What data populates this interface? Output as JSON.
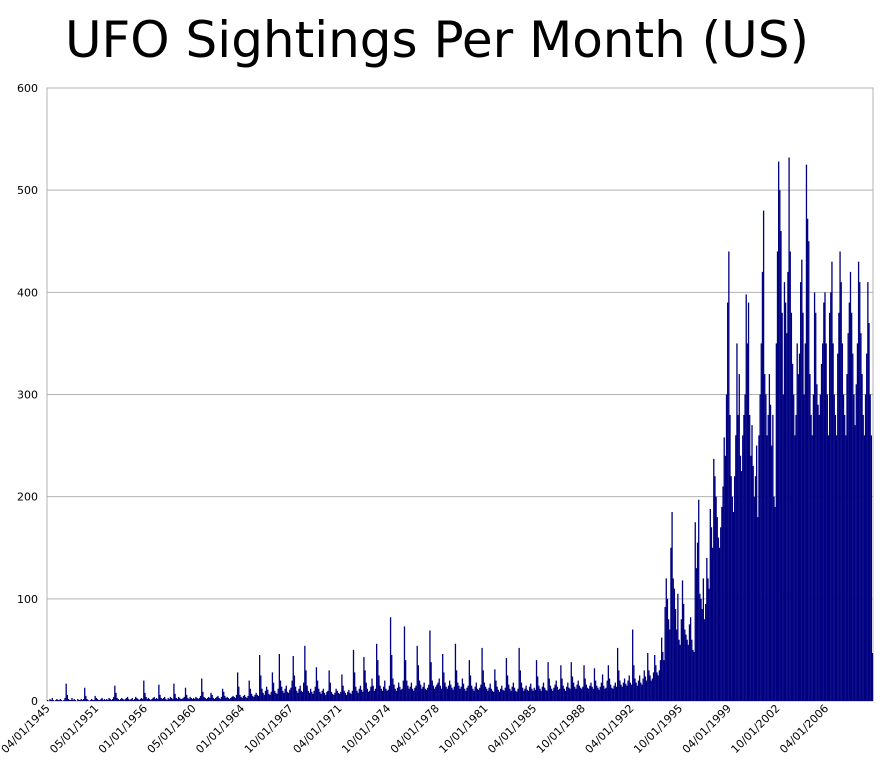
{
  "chart_data": {
    "type": "bar",
    "title": "UFO Sightings Per Month (US)",
    "color": "#000080",
    "grid": true,
    "ylim": [
      0,
      600
    ],
    "yticks": [
      0,
      100,
      200,
      300,
      400,
      500,
      600
    ],
    "categories": [
      "04/01/1945",
      null,
      null,
      null,
      null,
      null,
      null,
      null,
      null,
      null,
      null,
      null,
      null,
      null,
      null,
      null,
      null,
      null,
      null,
      null,
      null,
      null,
      null,
      null,
      null,
      null,
      null,
      null,
      null,
      null,
      null,
      null,
      null,
      null,
      null,
      null,
      null,
      null,
      null,
      null,
      null,
      null,
      "05/01/1951",
      null,
      null,
      null,
      null,
      null,
      null,
      null,
      null,
      null,
      null,
      null,
      null,
      null,
      null,
      null,
      null,
      null,
      null,
      null,
      null,
      null,
      null,
      null,
      null,
      null,
      null,
      null,
      null,
      null,
      null,
      null,
      null,
      null,
      null,
      null,
      null,
      null,
      null,
      null,
      null,
      null,
      "01/01/1956",
      null,
      null,
      null,
      null,
      null,
      null,
      null,
      null,
      null,
      null,
      null,
      null,
      null,
      null,
      null,
      null,
      null,
      null,
      null,
      null,
      null,
      null,
      null,
      null,
      null,
      null,
      null,
      null,
      null,
      null,
      null,
      null,
      null,
      null,
      null,
      null,
      null,
      null,
      null,
      null,
      null,
      "05/01/1960",
      null,
      null,
      null,
      null,
      null,
      null,
      null,
      null,
      null,
      null,
      null,
      null,
      null,
      null,
      null,
      null,
      null,
      null,
      null,
      null,
      null,
      null,
      null,
      null,
      null,
      null,
      null,
      null,
      null,
      null,
      null,
      null,
      null,
      null,
      null,
      null,
      null,
      null,
      null,
      null,
      null,
      "01/01/1964",
      null,
      null,
      null,
      null,
      null,
      null,
      null,
      null,
      null,
      null,
      null,
      null,
      null,
      null,
      null,
      null,
      null,
      null,
      null,
      null,
      null,
      null,
      null,
      null,
      null,
      null,
      null,
      null,
      null,
      null,
      null,
      null,
      null,
      null,
      null,
      null,
      null,
      null,
      null,
      null,
      null,
      "10/01/1967",
      null,
      null,
      null,
      null,
      null,
      null,
      null,
      null,
      null,
      null,
      null,
      null,
      null,
      null,
      null,
      null,
      null,
      null,
      null,
      null,
      null,
      null,
      null,
      null,
      null,
      null,
      null,
      null,
      null,
      null,
      null,
      null,
      null,
      null,
      null,
      null,
      null,
      null,
      null,
      null,
      null,
      "04/01/1971",
      null,
      null,
      null,
      null,
      null,
      null,
      null,
      null,
      null,
      null,
      null,
      null,
      null,
      null,
      null,
      null,
      null,
      null,
      null,
      null,
      null,
      null,
      null,
      null,
      null,
      null,
      null,
      null,
      null,
      null,
      null,
      null,
      null,
      null,
      null,
      null,
      null,
      null,
      null,
      null,
      null,
      "10/01/1974",
      null,
      null,
      null,
      null,
      null,
      null,
      null,
      null,
      null,
      null,
      null,
      null,
      null,
      null,
      null,
      null,
      null,
      null,
      null,
      null,
      null,
      null,
      null,
      null,
      null,
      null,
      null,
      null,
      null,
      null,
      null,
      null,
      null,
      null,
      null,
      null,
      null,
      null,
      null,
      null,
      null,
      "04/01/1978",
      null,
      null,
      null,
      null,
      null,
      null,
      null,
      null,
      null,
      null,
      null,
      null,
      null,
      null,
      null,
      null,
      null,
      null,
      null,
      null,
      null,
      null,
      null,
      null,
      null,
      null,
      null,
      null,
      null,
      null,
      null,
      null,
      null,
      null,
      null,
      null,
      null,
      null,
      null,
      null,
      null,
      "10/01/1981",
      null,
      null,
      null,
      null,
      null,
      null,
      null,
      null,
      null,
      null,
      null,
      null,
      null,
      null,
      null,
      null,
      null,
      null,
      null,
      null,
      null,
      null,
      null,
      null,
      null,
      null,
      null,
      null,
      null,
      null,
      null,
      null,
      null,
      null,
      null,
      null,
      null,
      null,
      null,
      null,
      null,
      "04/01/1985",
      null,
      null,
      null,
      null,
      null,
      null,
      null,
      null,
      null,
      null,
      null,
      null,
      null,
      null,
      null,
      null,
      null,
      null,
      null,
      null,
      null,
      null,
      null,
      null,
      null,
      null,
      null,
      null,
      null,
      null,
      null,
      null,
      null,
      null,
      null,
      null,
      null,
      null,
      null,
      null,
      null,
      "10/01/1988",
      null,
      null,
      null,
      null,
      null,
      null,
      null,
      null,
      null,
      null,
      null,
      null,
      null,
      null,
      null,
      null,
      null,
      null,
      null,
      null,
      null,
      null,
      null,
      null,
      null,
      null,
      null,
      null,
      null,
      null,
      null,
      null,
      null,
      null,
      null,
      null,
      null,
      null,
      null,
      null,
      null,
      "04/01/1992",
      null,
      null,
      null,
      null,
      null,
      null,
      null,
      null,
      null,
      null,
      null,
      null,
      null,
      null,
      null,
      null,
      null,
      null,
      null,
      null,
      null,
      null,
      null,
      null,
      null,
      null,
      null,
      null,
      null,
      null,
      null,
      null,
      null,
      null,
      null,
      null,
      null,
      null,
      null,
      null,
      null,
      "10/01/1995",
      null,
      null,
      null,
      null,
      null,
      null,
      null,
      null,
      null,
      null,
      null,
      null,
      null,
      null,
      null,
      null,
      null,
      null,
      null,
      null,
      null,
      null,
      null,
      null,
      null,
      null,
      null,
      null,
      null,
      null,
      null,
      null,
      null,
      null,
      null,
      null,
      null,
      null,
      null,
      null,
      null,
      "04/01/1999",
      null,
      null,
      null,
      null,
      null,
      null,
      null,
      null,
      null,
      null,
      null,
      null,
      null,
      null,
      null,
      null,
      null,
      null,
      null,
      null,
      null,
      null,
      null,
      null,
      null,
      null,
      null,
      null,
      null,
      null,
      null,
      null,
      null,
      null,
      null,
      null,
      null,
      null,
      null,
      null,
      null,
      "10/01/2002",
      null,
      null,
      null,
      null,
      null,
      null,
      null,
      null,
      null,
      null,
      null,
      null,
      null,
      null,
      null,
      null,
      null,
      null,
      null,
      null,
      null,
      null,
      null,
      null,
      null,
      null,
      null,
      null,
      null,
      null,
      null,
      null,
      null,
      null,
      null,
      null,
      null,
      null,
      null,
      null,
      null,
      "04/01/2006",
      null,
      null,
      null,
      null,
      null,
      null,
      null,
      null,
      null,
      null,
      null,
      null,
      null,
      null,
      null,
      null,
      null,
      null,
      null,
      null,
      null,
      null,
      null,
      null,
      null,
      null,
      null,
      null,
      null,
      null,
      null,
      null,
      null,
      null,
      null,
      null,
      null,
      null,
      null,
      null
    ],
    "values": [
      1,
      0,
      2,
      1,
      3,
      1,
      0,
      1,
      2,
      1,
      1,
      2,
      1,
      0,
      1,
      3,
      17,
      6,
      2,
      1,
      1,
      3,
      1,
      2,
      1,
      0,
      2,
      1,
      1,
      2,
      1,
      2,
      13,
      5,
      2,
      1,
      0,
      1,
      2,
      1,
      1,
      5,
      3,
      2,
      1,
      1,
      2,
      3,
      1,
      2,
      1,
      2,
      1,
      3,
      2,
      1,
      2,
      4,
      15,
      8,
      3,
      2,
      1,
      2,
      3,
      2,
      1,
      2,
      3,
      4,
      2,
      1,
      2,
      3,
      1,
      2,
      4,
      3,
      2,
      1,
      2,
      3,
      2,
      20,
      8,
      4,
      2,
      3,
      2,
      1,
      2,
      3,
      4,
      2,
      3,
      2,
      16,
      6,
      3,
      2,
      3,
      4,
      2,
      1,
      3,
      2,
      4,
      3,
      2,
      17,
      7,
      3,
      2,
      4,
      3,
      2,
      2,
      3,
      4,
      13,
      6,
      3,
      2,
      4,
      3,
      2,
      3,
      2,
      4,
      3,
      2,
      3,
      5,
      22,
      9,
      4,
      3,
      2,
      3,
      4,
      3,
      8,
      6,
      3,
      2,
      3,
      4,
      5,
      3,
      2,
      4,
      12,
      9,
      5,
      3,
      4,
      3,
      2,
      3,
      4,
      5,
      4,
      3,
      6,
      28,
      14,
      6,
      4,
      3,
      5,
      6,
      4,
      3,
      5,
      20,
      12,
      7,
      5,
      4,
      6,
      8,
      6,
      5,
      45,
      25,
      12,
      8,
      6,
      10,
      14,
      11,
      7,
      6,
      9,
      28,
      18,
      10,
      8,
      7,
      12,
      46,
      20,
      14,
      10,
      8,
      12,
      15,
      9,
      8,
      11,
      13,
      20,
      44,
      25,
      14,
      10,
      8,
      12,
      15,
      10,
      9,
      18,
      54,
      30,
      15,
      10,
      8,
      12,
      9,
      7,
      10,
      14,
      33,
      20,
      12,
      9,
      7,
      10,
      12,
      8,
      6,
      9,
      10,
      30,
      18,
      9,
      7,
      6,
      8,
      12,
      10,
      8,
      7,
      9,
      26,
      15,
      10,
      8,
      6,
      9,
      11,
      8,
      7,
      10,
      50,
      28,
      14,
      10,
      8,
      12,
      15,
      11,
      9,
      43,
      30,
      18,
      12,
      9,
      10,
      14,
      22,
      15,
      10,
      12,
      56,
      40,
      25,
      15,
      12,
      10,
      14,
      20,
      12,
      10,
      11,
      15,
      82,
      45,
      22,
      16,
      12,
      10,
      13,
      18,
      14,
      11,
      12,
      20,
      73,
      40,
      20,
      15,
      12,
      14,
      18,
      12,
      10,
      13,
      15,
      54,
      35,
      20,
      16,
      12,
      14,
      18,
      12,
      11,
      13,
      16,
      69,
      38,
      20,
      15,
      12,
      14,
      16,
      18,
      22,
      15,
      12,
      46,
      28,
      18,
      14,
      12,
      15,
      20,
      16,
      13,
      11,
      14,
      56,
      30,
      18,
      15,
      12,
      14,
      22,
      17,
      12,
      10,
      13,
      15,
      40,
      25,
      15,
      12,
      10,
      14,
      18,
      12,
      11,
      13,
      16,
      52,
      30,
      18,
      14,
      12,
      10,
      13,
      17,
      12,
      10,
      9,
      31,
      20,
      14,
      11,
      9,
      12,
      15,
      11,
      10,
      13,
      42,
      25,
      16,
      12,
      10,
      14,
      18,
      13,
      10,
      9,
      12,
      52,
      30,
      18,
      13,
      10,
      12,
      15,
      11,
      10,
      14,
      17,
      12,
      10,
      13,
      11,
      40,
      24,
      15,
      12,
      10,
      14,
      18,
      13,
      11,
      10,
      38,
      22,
      15,
      12,
      10,
      13,
      16,
      20,
      14,
      11,
      12,
      35,
      22,
      15,
      12,
      10,
      14,
      18,
      13,
      12,
      38,
      24,
      18,
      14,
      12,
      16,
      20,
      15,
      13,
      12,
      14,
      35,
      22,
      16,
      13,
      12,
      15,
      18,
      14,
      12,
      32,
      20,
      15,
      13,
      11,
      14,
      18,
      26,
      15,
      12,
      13,
      20,
      35,
      22,
      16,
      13,
      12,
      15,
      18,
      14,
      52,
      30,
      20,
      16,
      14,
      18,
      22,
      17,
      15,
      20,
      25,
      18,
      16,
      70,
      35,
      22,
      18,
      15,
      20,
      25,
      18,
      16,
      22,
      30,
      24,
      20,
      47,
      30,
      25,
      20,
      22,
      28,
      45,
      35,
      28,
      25,
      30,
      40,
      62,
      48,
      40,
      92,
      120,
      100,
      80,
      70,
      150,
      185,
      120,
      110,
      90,
      70,
      105,
      60,
      55,
      80,
      118,
      95,
      70,
      65,
      60,
      55,
      75,
      82,
      60,
      50,
      48,
      175,
      130,
      155,
      197,
      105,
      100,
      90,
      120,
      80,
      95,
      140,
      120,
      110,
      188,
      170,
      150,
      237,
      220,
      200,
      180,
      160,
      150,
      170,
      190,
      210,
      258,
      240,
      300,
      390,
      440,
      280,
      220,
      200,
      185,
      220,
      260,
      350,
      280,
      320,
      240,
      225,
      260,
      280,
      300,
      398,
      350,
      390,
      280,
      240,
      270,
      230,
      200,
      220,
      250,
      180,
      260,
      300,
      350,
      420,
      480,
      320,
      300,
      260,
      280,
      320,
      290,
      250,
      280,
      200,
      190,
      350,
      440,
      528,
      500,
      460,
      380,
      300,
      410,
      390,
      360,
      420,
      532,
      440,
      380,
      330,
      300,
      260,
      280,
      350,
      320,
      340,
      410,
      432,
      380,
      300,
      350,
      525,
      472,
      450,
      320,
      280,
      260,
      300,
      400,
      380,
      310,
      290,
      280,
      300,
      330,
      350,
      390,
      400,
      350,
      300,
      260,
      380,
      400,
      430,
      350,
      300,
      280,
      260,
      340,
      380,
      440,
      410,
      350,
      300,
      280,
      260,
      320,
      360,
      390,
      420,
      380,
      340,
      300,
      270,
      310,
      350,
      430,
      410,
      360,
      320,
      280,
      260,
      300,
      340,
      410,
      370,
      300,
      260,
      47
    ]
  }
}
